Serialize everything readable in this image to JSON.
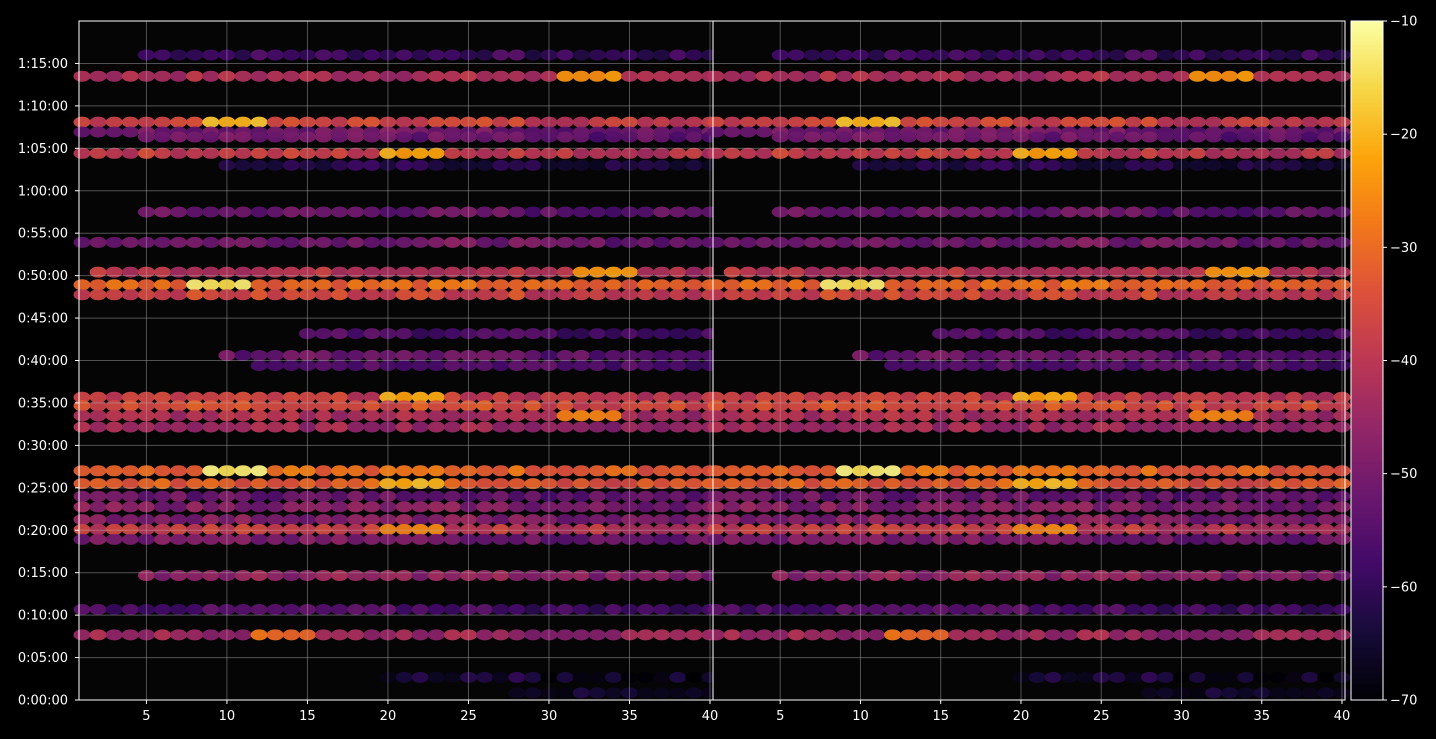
{
  "chart_data": {
    "type": "heatmap",
    "colormap": "inferno",
    "background": "#050505",
    "grid": true,
    "panels": [
      {
        "name": "",
        "xlim": [
          1,
          40
        ],
        "xticks": [
          5,
          10,
          15,
          20,
          25,
          30,
          35,
          40
        ],
        "ylim_seconds": [
          0,
          4800
        ],
        "yticks": [
          {
            "s": 0,
            "label": "0:00:00"
          },
          {
            "s": 300,
            "label": "0:05:00"
          },
          {
            "s": 600,
            "label": "0:10:00"
          },
          {
            "s": 900,
            "label": "0:15:00"
          },
          {
            "s": 1200,
            "label": "0:20:00"
          },
          {
            "s": 1500,
            "label": "0:25:00"
          },
          {
            "s": 1800,
            "label": "0:30:00"
          },
          {
            "s": 2100,
            "label": "0:35:00"
          },
          {
            "s": 2400,
            "label": "0:40:00"
          },
          {
            "s": 2700,
            "label": "0:45:00"
          },
          {
            "s": 3000,
            "label": "0:50:00"
          },
          {
            "s": 3300,
            "label": "0:55:00"
          },
          {
            "s": 3600,
            "label": "1:00:00"
          },
          {
            "s": 3900,
            "label": "1:05:00"
          },
          {
            "s": 4200,
            "label": "1:10:00"
          },
          {
            "s": 4500,
            "label": "1:15:00"
          }
        ]
      },
      {
        "name": "",
        "xlim": [
          1,
          40
        ],
        "xticks": [
          5,
          10,
          15,
          20,
          25,
          30,
          35,
          40
        ],
        "ylim_seconds": [
          0,
          4800
        ]
      }
    ],
    "bands": [
      {
        "t": 4560,
        "db": -58,
        "x0": 5,
        "x1": 40
      },
      {
        "t": 4410,
        "db": -42,
        "x0": 1,
        "x1": 40,
        "peak": -22,
        "peak_from": 31
      },
      {
        "t": 4085,
        "db": -36,
        "x0": 1,
        "x1": 40,
        "peak": -20,
        "peak_from": 9
      },
      {
        "t": 4015,
        "db": -50,
        "x0": 1,
        "x1": 40
      },
      {
        "t": 3980,
        "db": -52,
        "x0": 5,
        "x1": 40
      },
      {
        "t": 3865,
        "db": -38,
        "x0": 1,
        "x1": 40,
        "peak": -22,
        "peak_from": 20
      },
      {
        "t": 3780,
        "db": -62,
        "x0": 10,
        "x1": 40
      },
      {
        "t": 3450,
        "db": -52,
        "x0": 5,
        "x1": 40
      },
      {
        "t": 3235,
        "db": -50,
        "x0": 1,
        "x1": 40
      },
      {
        "t": 3025,
        "db": -40,
        "x0": 2,
        "x1": 40,
        "peak": -22,
        "peak_from": 32
      },
      {
        "t": 2935,
        "db": -30,
        "x0": 1,
        "x1": 40,
        "peak": -14,
        "peak_from": 8
      },
      {
        "t": 2865,
        "db": -36,
        "x0": 1,
        "x1": 40
      },
      {
        "t": 2590,
        "db": -56,
        "x0": 15,
        "x1": 40
      },
      {
        "t": 2435,
        "db": -52,
        "x0": 10,
        "x1": 40
      },
      {
        "t": 2365,
        "db": -54,
        "x0": 12,
        "x1": 40
      },
      {
        "t": 2140,
        "db": -38,
        "x0": 1,
        "x1": 40,
        "peak": -22,
        "peak_from": 20
      },
      {
        "t": 2080,
        "db": -34,
        "x0": 1,
        "x1": 40
      },
      {
        "t": 2010,
        "db": -42,
        "x0": 1,
        "x1": 40,
        "peak": -24,
        "peak_from": 31
      },
      {
        "t": 1930,
        "db": -44,
        "x0": 1,
        "x1": 40
      },
      {
        "t": 1620,
        "db": -30,
        "x0": 1,
        "x1": 40,
        "peak": -14,
        "peak_from": 9
      },
      {
        "t": 1530,
        "db": -32,
        "x0": 1,
        "x1": 40,
        "peak": -20,
        "peak_from": 20
      },
      {
        "t": 1440,
        "db": -52,
        "x0": 1,
        "x1": 40
      },
      {
        "t": 1365,
        "db": -48,
        "x0": 1,
        "x1": 40
      },
      {
        "t": 1275,
        "db": -48,
        "x0": 1,
        "x1": 40
      },
      {
        "t": 1205,
        "db": -38,
        "x0": 1,
        "x1": 40,
        "peak": -26,
        "peak_from": 20
      },
      {
        "t": 1135,
        "db": -50,
        "x0": 1,
        "x1": 40
      },
      {
        "t": 880,
        "db": -46,
        "x0": 5,
        "x1": 40
      },
      {
        "t": 640,
        "db": -56,
        "x0": 1,
        "x1": 40
      },
      {
        "t": 460,
        "db": -44,
        "x0": 1,
        "x1": 40,
        "peak": -30,
        "peak_from": 12
      },
      {
        "t": 160,
        "db": -64,
        "x0": 20,
        "x1": 40
      },
      {
        "t": 50,
        "db": -64,
        "x0": 28,
        "x1": 40
      }
    ],
    "colorbar": {
      "min": -70,
      "max": -10,
      "ticks": [
        "−70",
        "−60",
        "−50",
        "−40",
        "−30",
        "−20",
        "−10"
      ]
    }
  }
}
